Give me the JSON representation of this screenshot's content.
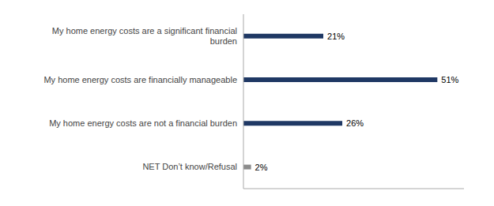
{
  "chart_data": {
    "type": "bar",
    "orientation": "horizontal",
    "categories": [
      "NET Don’t know/Refusal",
      "My home energy costs are not a financial burden",
      "My home energy costs are financially manageable",
      "My home energy costs are a significant financial\nburden"
    ],
    "values": [
      2,
      26,
      51,
      21
    ],
    "value_labels": [
      "2%",
      "26%",
      "51%",
      "21%"
    ],
    "colors": [
      "#8c8c8c",
      "#1f3864",
      "#1f3864",
      "#1f3864"
    ],
    "xlim": [
      0,
      58
    ],
    "data_labels": true,
    "tick_labels": "y",
    "grid": false
  }
}
